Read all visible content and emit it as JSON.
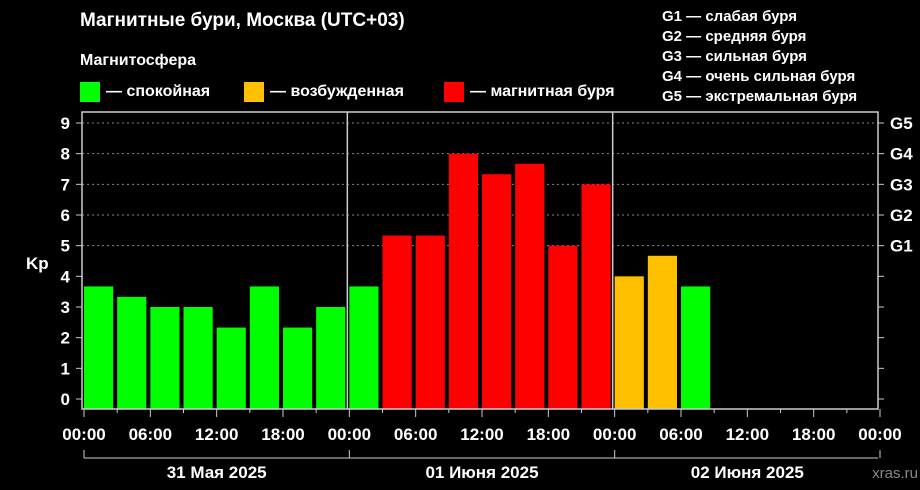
{
  "title": "Магнитные бури, Москва (UTC+03)",
  "legend": {
    "title": "Магнитосфера",
    "items": [
      {
        "label": "— спокойная",
        "color": "#00ff00"
      },
      {
        "label": "— возбужденная",
        "color": "#ffc000"
      },
      {
        "label": "— магнитная буря",
        "color": "#ff0000"
      }
    ]
  },
  "g_scale": [
    "G1 — слабая буря",
    "G2 — средняя буря",
    "G3 — сильная буря",
    "G4 — очень сильная буря",
    "G5 — экстремальная буря"
  ],
  "watermark": "xras.ru",
  "chart_data": {
    "type": "bar",
    "ylabel": "Kp",
    "ylim": [
      0,
      9
    ],
    "yticks": [
      0,
      1,
      2,
      3,
      4,
      5,
      6,
      7,
      8,
      9
    ],
    "right_ticks": [
      {
        "value": 5,
        "label": "G1"
      },
      {
        "value": 6,
        "label": "G2"
      },
      {
        "value": 7,
        "label": "G3"
      },
      {
        "value": 8,
        "label": "G4"
      },
      {
        "value": 9,
        "label": "G5"
      }
    ],
    "grid": "dotted horizontal at 5-9",
    "days": [
      "31 Мая 2025",
      "01 Июня 2025",
      "02 Июня 2025"
    ],
    "xtick_labels": [
      "00:00",
      "06:00",
      "12:00",
      "18:00",
      "00:00",
      "06:00",
      "12:00",
      "18:00",
      "00:00",
      "06:00",
      "12:00",
      "18:00",
      "00:00"
    ],
    "interval_hours": 3,
    "values": [
      3.67,
      3.33,
      3,
      3,
      2.33,
      3.67,
      2.33,
      3,
      3.67,
      5.33,
      5.33,
      8,
      7.33,
      7.67,
      5,
      7,
      4,
      4.67,
      3.67
    ],
    "colors": {
      "quiet": "#00ff00",
      "active": "#ffc000",
      "storm": "#ff0000"
    },
    "bar_status": [
      "quiet",
      "quiet",
      "quiet",
      "quiet",
      "quiet",
      "quiet",
      "quiet",
      "quiet",
      "quiet",
      "storm",
      "storm",
      "storm",
      "storm",
      "storm",
      "storm",
      "storm",
      "active",
      "active",
      "quiet"
    ]
  }
}
